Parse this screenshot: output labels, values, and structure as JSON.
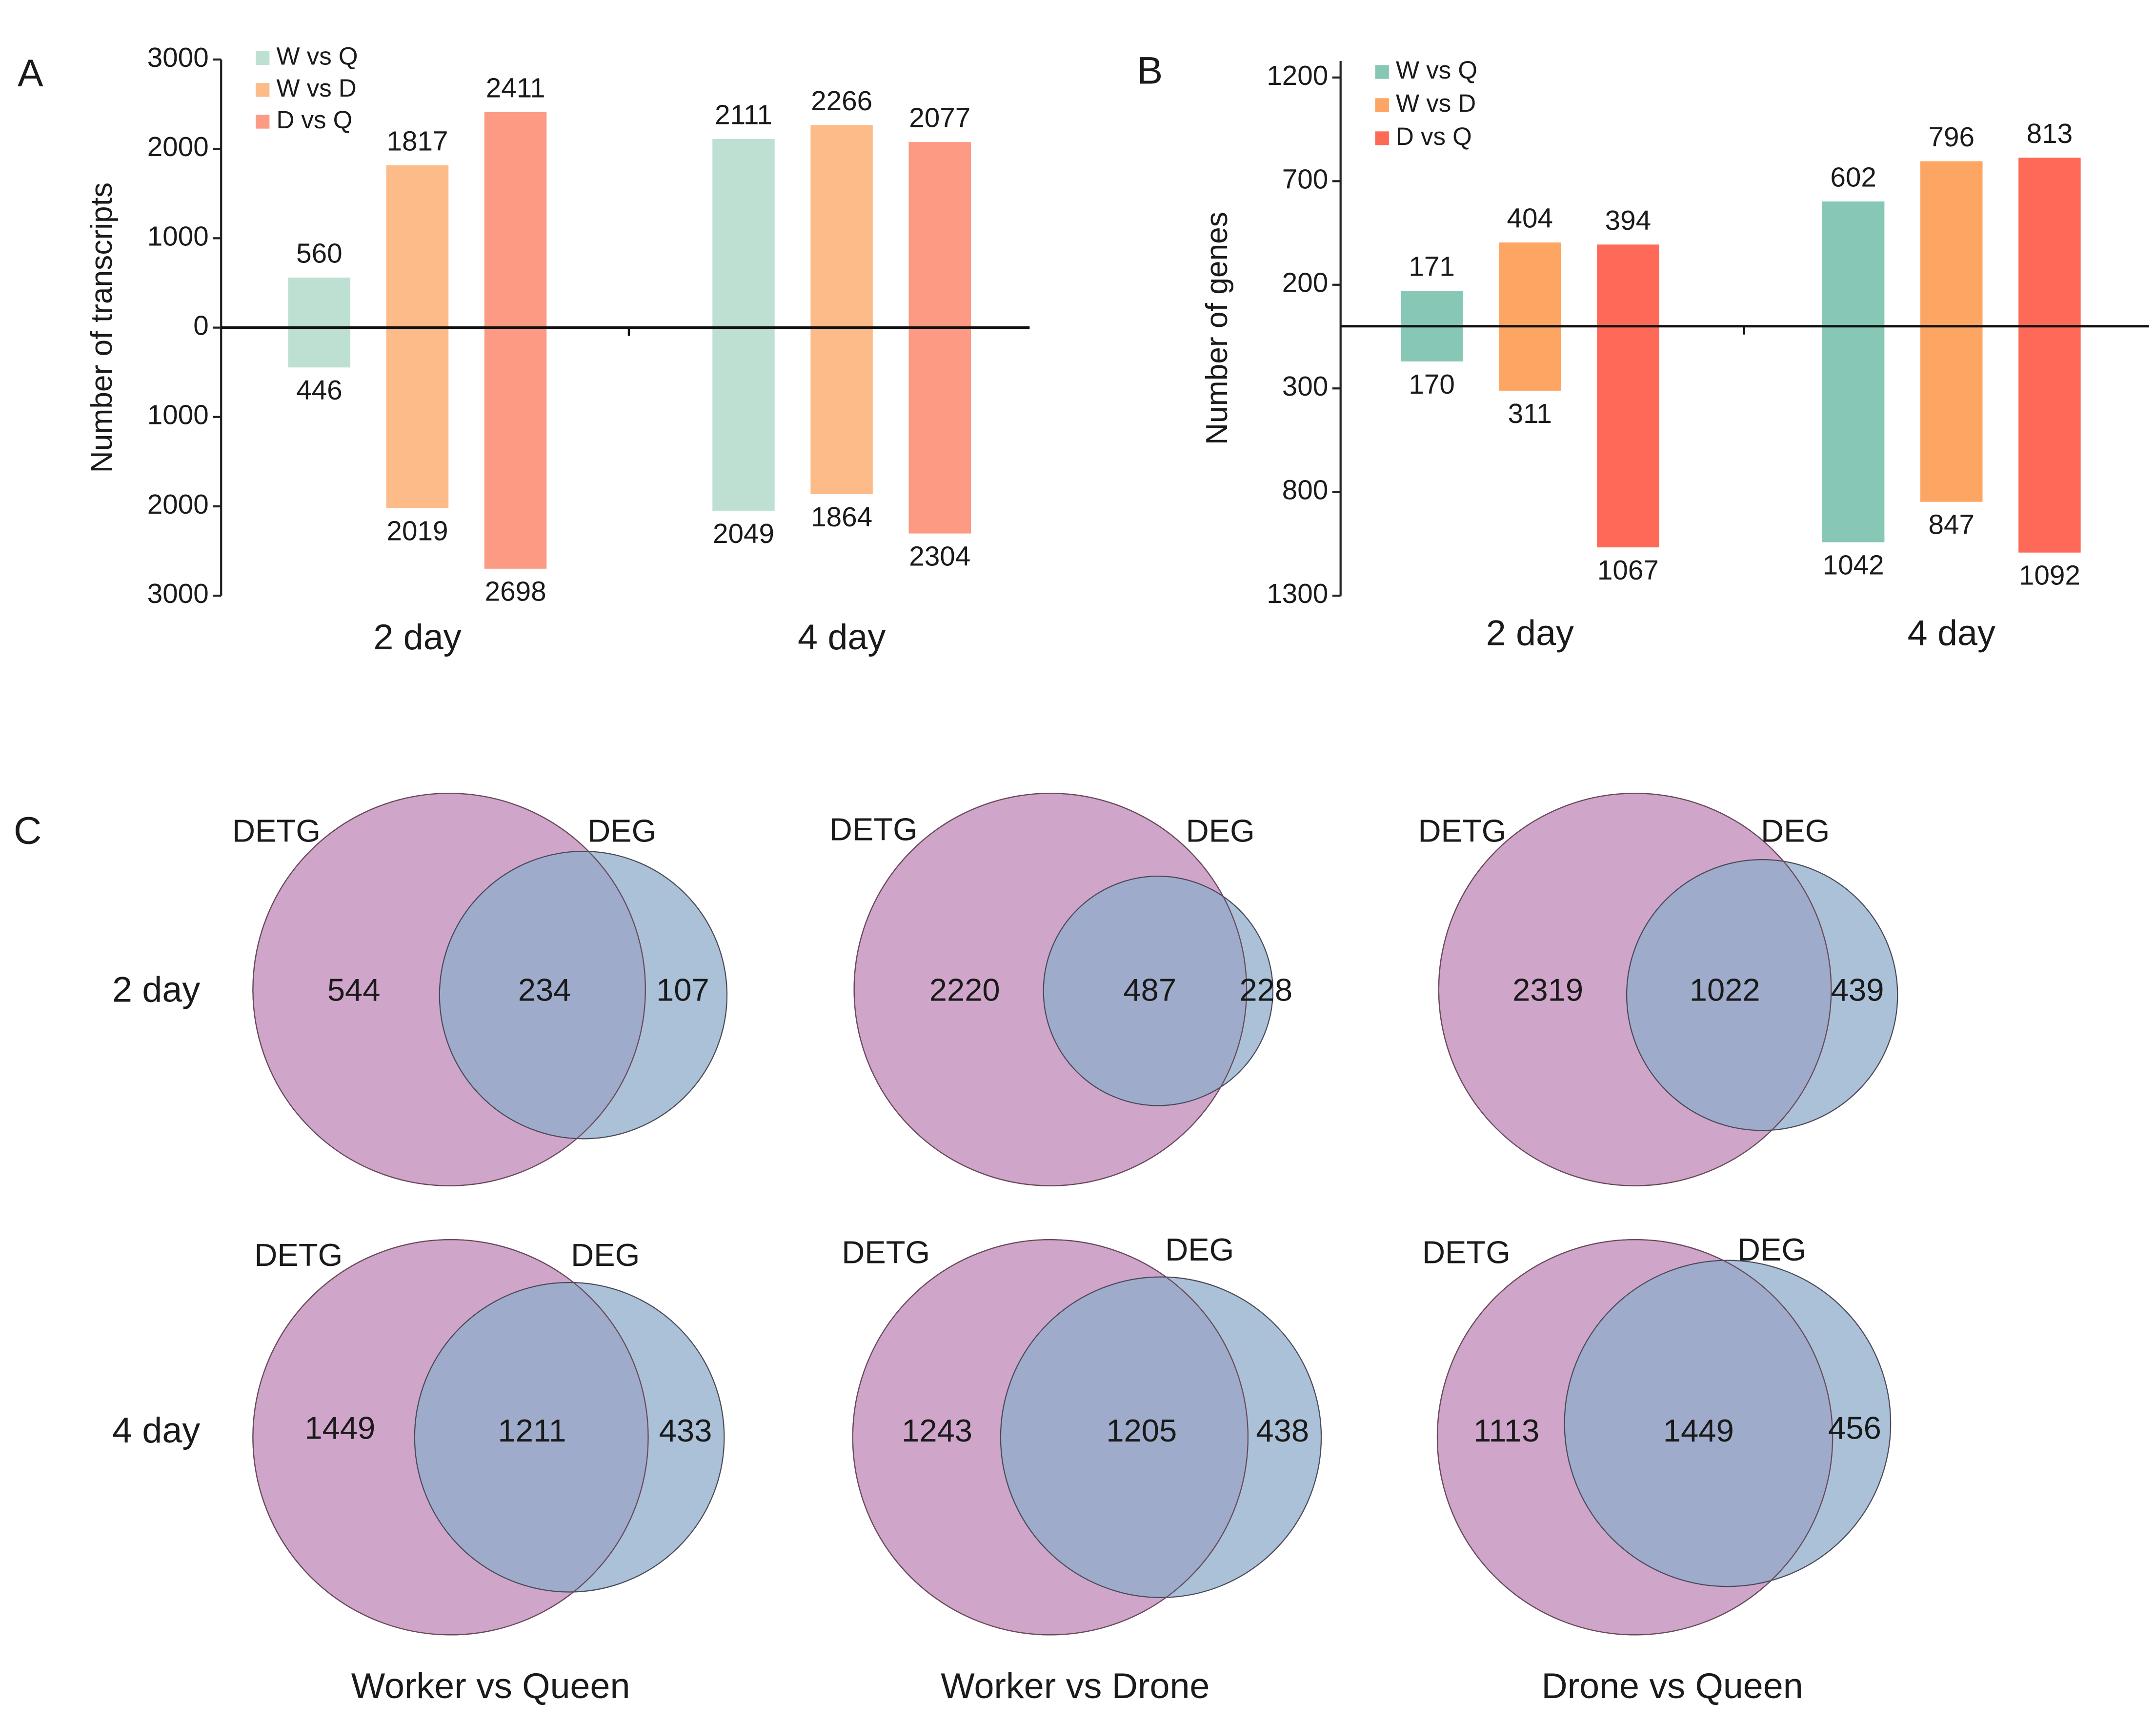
{
  "chart_data": [
    {
      "type": "bar",
      "panel": "A",
      "ylabel": "Number of transcripts",
      "categories": [
        "2 day",
        "4 day"
      ],
      "series": [
        {
          "name": "W vs Q",
          "color": "#bde0d2",
          "values": [
            560,
            2111
          ],
          "values_down": [
            446,
            2049
          ]
        },
        {
          "name": "W vs D",
          "color": "#fdbb8a",
          "values": [
            1817,
            2266
          ],
          "values_down": [
            2019,
            1864
          ]
        },
        {
          "name": "D vs Q",
          "color": "#fd9a83",
          "values": [
            2411,
            2077
          ],
          "values_down": [
            2698,
            2304
          ]
        }
      ],
      "ylim": [
        -3000,
        3000
      ],
      "yticks": [
        3000,
        2000,
        1000,
        0,
        {
          "value": -1000,
          "label": "1000"
        },
        {
          "value": -2000,
          "label": "2000"
        },
        {
          "value": -3000,
          "label": "3000"
        }
      ]
    },
    {
      "type": "bar",
      "panel": "B",
      "ylabel": "Number of genes",
      "categories": [
        "2 day",
        "4 day"
      ],
      "series": [
        {
          "name": "W vs Q",
          "color": "#86c8b5",
          "values": [
            171,
            602
          ],
          "values_down": [
            170,
            1042
          ]
        },
        {
          "name": "W vs D",
          "color": "#fda562",
          "values": [
            404,
            796
          ],
          "values_down": [
            311,
            847
          ]
        },
        {
          "name": "D vs Q",
          "color": "#fe6a57",
          "values": [
            394,
            813
          ],
          "values_down": [
            1067,
            1092
          ]
        }
      ],
      "ylim": [
        -1300,
        1280
      ],
      "yticks": [
        1200,
        700,
        200,
        {
          "value": -300,
          "label": "300"
        },
        {
          "value": -800,
          "label": "800"
        },
        {
          "value": -1300,
          "label": "1300"
        }
      ]
    },
    {
      "type": "venn",
      "panel": "C",
      "set_labels": [
        "DETG",
        "DEG"
      ],
      "row_labels": [
        "2 day",
        "4 day"
      ],
      "column_labels": [
        "Worker vs Queen",
        "Worker vs Drone",
        "Drone vs Queen"
      ],
      "colors": [
        "#cfa6ca",
        "#8dacca"
      ],
      "diagrams": [
        [
          544,
          234,
          107
        ],
        [
          2220,
          487,
          228
        ],
        [
          2319,
          1022,
          439
        ],
        [
          1449,
          1211,
          433
        ],
        [
          1243,
          1205,
          438
        ],
        [
          1113,
          1449,
          456
        ]
      ]
    }
  ]
}
